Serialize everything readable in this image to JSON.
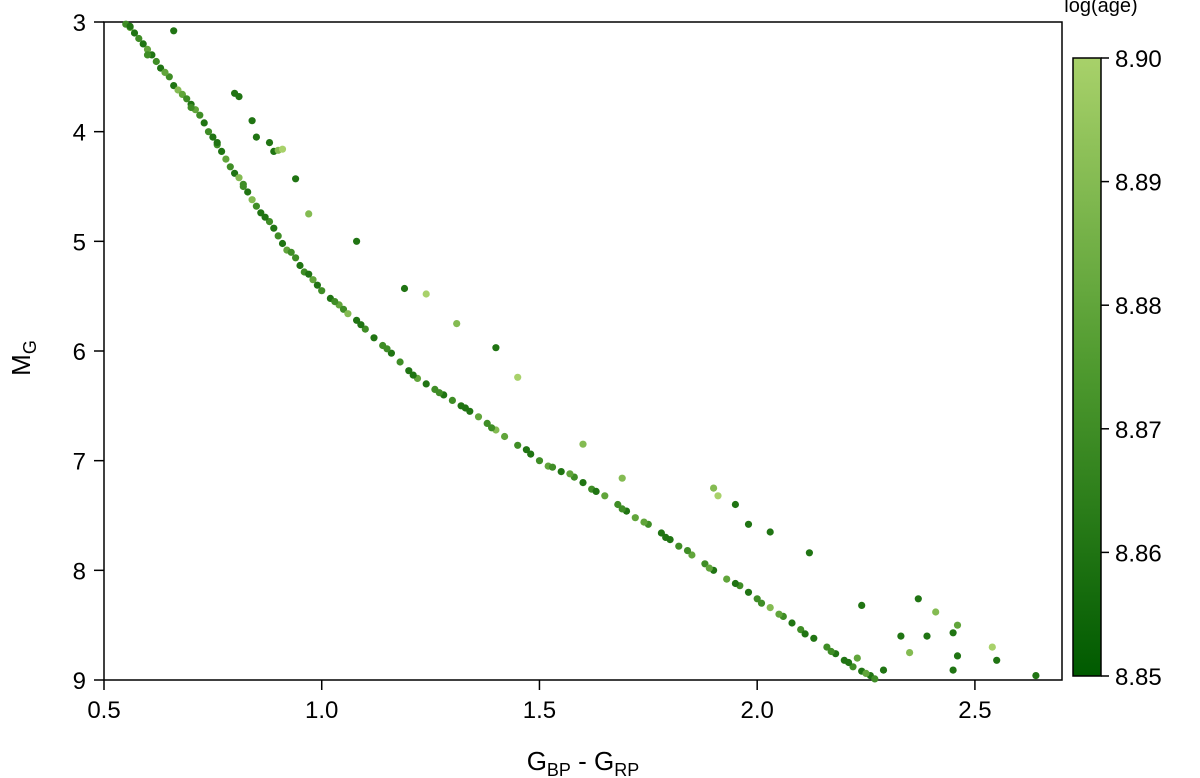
{
  "chart_data": {
    "type": "scatter",
    "xlabel": {
      "main": "G",
      "sub1": "BP",
      "mid": " - G",
      "sub2": "RP"
    },
    "ylabel": {
      "main": "M",
      "sub": "G"
    },
    "xlim": [
      0.5,
      2.7
    ],
    "ylim": [
      9.0,
      3.0
    ],
    "y_inverted": true,
    "x_ticks": [
      0.5,
      1.0,
      1.5,
      2.0,
      2.5
    ],
    "x_tick_labels": [
      "0.5",
      "1.0",
      "1.5",
      "2.0",
      "2.5"
    ],
    "y_ticks": [
      3,
      4,
      5,
      6,
      7,
      8,
      9
    ],
    "y_tick_labels": [
      "3",
      "4",
      "5",
      "6",
      "7",
      "8",
      "9"
    ],
    "colorbar": {
      "title": "log(age)",
      "range": [
        8.85,
        8.9
      ],
      "ticks": [
        8.85,
        8.86,
        8.87,
        8.88,
        8.89,
        8.9
      ],
      "tick_labels": [
        "8.85",
        "8.86",
        "8.87",
        "8.88",
        "8.89",
        "8.90"
      ],
      "color_low": "#005a00",
      "color_mid": "#4f9a2f",
      "color_high": "#a8d16a"
    },
    "points": [
      [
        0.55,
        3.02,
        8.87
      ],
      [
        0.56,
        3.05,
        8.88
      ],
      [
        0.57,
        3.1,
        8.86
      ],
      [
        0.58,
        3.15,
        8.87
      ],
      [
        0.59,
        3.2,
        8.86
      ],
      [
        0.6,
        3.25,
        8.88
      ],
      [
        0.61,
        3.3,
        8.86
      ],
      [
        0.62,
        3.36,
        8.87
      ],
      [
        0.63,
        3.42,
        8.86
      ],
      [
        0.65,
        3.5,
        8.87
      ],
      [
        0.66,
        3.58,
        8.86
      ],
      [
        0.67,
        3.62,
        8.89
      ],
      [
        0.68,
        3.66,
        8.88
      ],
      [
        0.69,
        3.7,
        8.87
      ],
      [
        0.7,
        3.75,
        8.86
      ],
      [
        0.71,
        3.8,
        8.88
      ],
      [
        0.72,
        3.85,
        8.87
      ],
      [
        0.73,
        3.92,
        8.86
      ],
      [
        0.74,
        4.0,
        8.87
      ],
      [
        0.75,
        4.05,
        8.86
      ],
      [
        0.76,
        4.12,
        8.87
      ],
      [
        0.77,
        4.18,
        8.86
      ],
      [
        0.78,
        4.25,
        8.88
      ],
      [
        0.79,
        4.32,
        8.87
      ],
      [
        0.8,
        4.38,
        8.86
      ],
      [
        0.81,
        4.42,
        8.89
      ],
      [
        0.82,
        4.48,
        8.87
      ],
      [
        0.83,
        4.55,
        8.86
      ],
      [
        0.84,
        4.62,
        8.89
      ],
      [
        0.85,
        4.68,
        8.87
      ],
      [
        0.86,
        4.74,
        8.86
      ],
      [
        0.88,
        4.82,
        8.87
      ],
      [
        0.89,
        4.88,
        8.86
      ],
      [
        0.9,
        4.95,
        8.87
      ],
      [
        0.91,
        5.02,
        8.86
      ],
      [
        0.92,
        5.08,
        8.88
      ],
      [
        0.94,
        5.15,
        8.87
      ],
      [
        0.95,
        5.22,
        8.86
      ],
      [
        0.96,
        5.28,
        8.87
      ],
      [
        0.98,
        5.35,
        8.88
      ],
      [
        0.99,
        5.4,
        8.86
      ],
      [
        1.0,
        5.45,
        8.87
      ],
      [
        1.02,
        5.52,
        8.86
      ],
      [
        1.04,
        5.58,
        8.88
      ],
      [
        1.05,
        5.62,
        8.87
      ],
      [
        1.06,
        5.66,
        8.89
      ],
      [
        1.08,
        5.72,
        8.86
      ],
      [
        1.1,
        5.8,
        8.87
      ],
      [
        1.12,
        5.88,
        8.86
      ],
      [
        1.14,
        5.95,
        8.87
      ],
      [
        1.16,
        6.02,
        8.86
      ],
      [
        1.18,
        6.1,
        8.87
      ],
      [
        1.2,
        6.18,
        8.86
      ],
      [
        1.22,
        6.25,
        8.88
      ],
      [
        1.24,
        6.3,
        8.86
      ],
      [
        1.26,
        6.35,
        8.87
      ],
      [
        1.28,
        6.4,
        8.86
      ],
      [
        1.3,
        6.45,
        8.87
      ],
      [
        1.32,
        6.5,
        8.86
      ],
      [
        1.34,
        6.55,
        8.86
      ],
      [
        1.36,
        6.6,
        8.88
      ],
      [
        1.38,
        6.66,
        8.87
      ],
      [
        1.4,
        6.72,
        8.89
      ],
      [
        1.42,
        6.78,
        8.88
      ],
      [
        1.45,
        6.86,
        8.87
      ],
      [
        1.48,
        6.94,
        8.86
      ],
      [
        1.5,
        7.0,
        8.87
      ],
      [
        1.52,
        7.05,
        8.88
      ],
      [
        1.55,
        7.1,
        8.86
      ],
      [
        1.58,
        7.15,
        8.87
      ],
      [
        1.6,
        7.2,
        8.86
      ],
      [
        1.62,
        7.26,
        8.87
      ],
      [
        1.65,
        7.32,
        8.88
      ],
      [
        1.68,
        7.4,
        8.87
      ],
      [
        1.7,
        7.46,
        8.86
      ],
      [
        1.72,
        7.52,
        8.88
      ],
      [
        1.75,
        7.58,
        8.87
      ],
      [
        1.78,
        7.66,
        8.86
      ],
      [
        1.8,
        7.72,
        8.86
      ],
      [
        1.82,
        7.78,
        8.87
      ],
      [
        1.85,
        7.86,
        8.88
      ],
      [
        1.88,
        7.94,
        8.87
      ],
      [
        1.9,
        8.0,
        8.86
      ],
      [
        1.93,
        8.08,
        8.88
      ],
      [
        1.96,
        8.14,
        8.87
      ],
      [
        1.98,
        8.2,
        8.86
      ],
      [
        2.0,
        8.26,
        8.87
      ],
      [
        2.03,
        8.34,
        8.89
      ],
      [
        2.06,
        8.42,
        8.87
      ],
      [
        2.08,
        8.48,
        8.86
      ],
      [
        2.1,
        8.54,
        8.87
      ],
      [
        2.13,
        8.62,
        8.86
      ],
      [
        2.16,
        8.7,
        8.87
      ],
      [
        2.18,
        8.76,
        8.86
      ],
      [
        2.2,
        8.82,
        8.86
      ],
      [
        2.22,
        8.88,
        8.87
      ],
      [
        2.24,
        8.92,
        8.86
      ],
      [
        2.26,
        8.96,
        8.86
      ],
      [
        2.27,
        8.99,
        8.87
      ],
      [
        0.56,
        3.04,
        8.86
      ],
      [
        0.6,
        3.3,
        8.87
      ],
      [
        0.64,
        3.46,
        8.88
      ],
      [
        0.7,
        3.78,
        8.87
      ],
      [
        0.76,
        4.1,
        8.86
      ],
      [
        0.82,
        4.5,
        8.87
      ],
      [
        0.87,
        4.78,
        8.86
      ],
      [
        0.93,
        5.1,
        8.87
      ],
      [
        0.97,
        5.3,
        8.86
      ],
      [
        1.03,
        5.55,
        8.87
      ],
      [
        1.09,
        5.76,
        8.86
      ],
      [
        1.15,
        5.98,
        8.87
      ],
      [
        1.21,
        6.22,
        8.86
      ],
      [
        1.27,
        6.38,
        8.87
      ],
      [
        1.33,
        6.52,
        8.86
      ],
      [
        1.39,
        6.7,
        8.87
      ],
      [
        1.47,
        6.9,
        8.86
      ],
      [
        1.53,
        7.06,
        8.87
      ],
      [
        1.57,
        7.12,
        8.88
      ],
      [
        1.63,
        7.28,
        8.86
      ],
      [
        1.69,
        7.44,
        8.87
      ],
      [
        1.74,
        7.56,
        8.88
      ],
      [
        1.79,
        7.7,
        8.86
      ],
      [
        1.84,
        7.82,
        8.87
      ],
      [
        1.89,
        7.98,
        8.88
      ],
      [
        1.95,
        8.12,
        8.86
      ],
      [
        2.01,
        8.3,
        8.87
      ],
      [
        2.05,
        8.4,
        8.88
      ],
      [
        2.11,
        8.58,
        8.86
      ],
      [
        2.17,
        8.74,
        8.87
      ],
      [
        2.21,
        8.84,
        8.86
      ],
      [
        2.25,
        8.94,
        8.88
      ],
      [
        0.66,
        3.08,
        8.86
      ],
      [
        0.8,
        3.65,
        8.86
      ],
      [
        0.81,
        3.68,
        8.86
      ],
      [
        0.84,
        3.9,
        8.86
      ],
      [
        0.85,
        4.05,
        8.86
      ],
      [
        0.88,
        4.1,
        8.86
      ],
      [
        0.89,
        4.18,
        8.86
      ],
      [
        0.9,
        4.17,
        8.89
      ],
      [
        0.91,
        4.16,
        8.9
      ],
      [
        0.94,
        4.43,
        8.86
      ],
      [
        0.97,
        4.75,
        8.89
      ],
      [
        1.08,
        5.0,
        8.86
      ],
      [
        1.19,
        5.43,
        8.86
      ],
      [
        1.24,
        5.48,
        8.9
      ],
      [
        1.31,
        5.75,
        8.89
      ],
      [
        1.4,
        5.97,
        8.86
      ],
      [
        1.45,
        6.24,
        8.9
      ],
      [
        1.6,
        6.85,
        8.89
      ],
      [
        1.69,
        7.16,
        8.89
      ],
      [
        1.9,
        7.25,
        8.89
      ],
      [
        1.91,
        7.32,
        8.9
      ],
      [
        1.95,
        7.4,
        8.86
      ],
      [
        1.98,
        7.58,
        8.86
      ],
      [
        2.03,
        7.65,
        8.86
      ],
      [
        2.12,
        7.84,
        8.86
      ],
      [
        2.24,
        8.32,
        8.86
      ],
      [
        2.37,
        8.26,
        8.86
      ],
      [
        2.33,
        8.6,
        8.86
      ],
      [
        2.39,
        8.6,
        8.86
      ],
      [
        2.41,
        8.38,
        8.89
      ],
      [
        2.46,
        8.5,
        8.88
      ],
      [
        2.45,
        8.57,
        8.86
      ],
      [
        2.46,
        8.78,
        8.86
      ],
      [
        2.45,
        8.91,
        8.86
      ],
      [
        2.35,
        8.75,
        8.89
      ],
      [
        2.54,
        8.7,
        8.9
      ],
      [
        2.55,
        8.82,
        8.86
      ],
      [
        2.64,
        8.96,
        8.86
      ],
      [
        2.29,
        8.91,
        8.86
      ],
      [
        2.23,
        8.8,
        8.88
      ]
    ]
  }
}
